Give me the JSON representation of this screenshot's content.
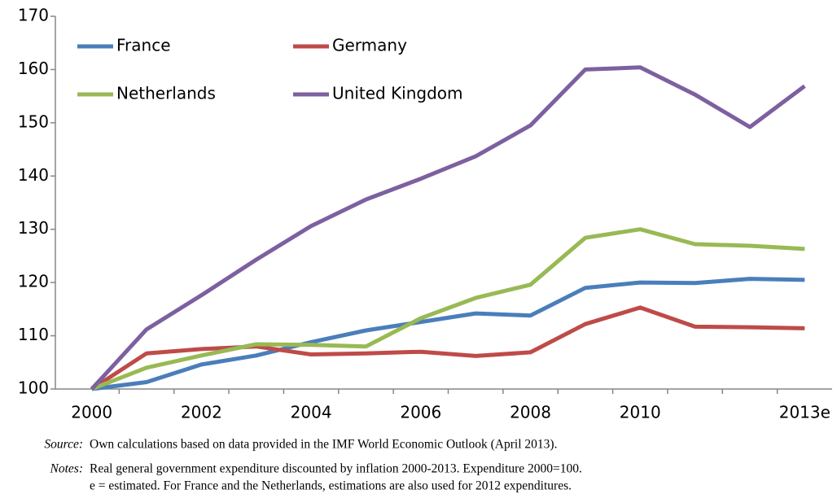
{
  "chart_data": {
    "type": "line",
    "categories": [
      "2000",
      null,
      "2002",
      null,
      "2004",
      null,
      "2006",
      null,
      "2008",
      null,
      "2010",
      null,
      null,
      "2013e"
    ],
    "series": [
      {
        "name": "France",
        "color": "#4a7ebb",
        "values": [
          100,
          101.3,
          104.6,
          106.3,
          108.8,
          111,
          112.6,
          114.2,
          113.8,
          119,
          120,
          119.9,
          120.7,
          120.5
        ]
      },
      {
        "name": "Germany",
        "color": "#be4b48",
        "values": [
          100,
          106.7,
          107.5,
          108,
          106.5,
          106.7,
          107,
          106.2,
          106.9,
          112.2,
          115.3,
          111.7,
          111.6,
          111.4
        ]
      },
      {
        "name": "Netherlands",
        "color": "#98b954",
        "values": [
          100,
          104,
          106.3,
          108.4,
          108.3,
          108,
          113.3,
          117.1,
          119.6,
          128.4,
          130,
          127.2,
          126.9,
          126.3
        ]
      },
      {
        "name": "United Kingdom",
        "color": "#7d60a0",
        "values": [
          100,
          111.2,
          117.6,
          124.3,
          130.6,
          135.6,
          139.5,
          143.7,
          149.5,
          160,
          160.4,
          155.3,
          149.2,
          156.9
        ]
      }
    ],
    "ylim": [
      100,
      170
    ],
    "yticks": [
      100,
      110,
      120,
      130,
      140,
      150,
      160,
      170
    ],
    "grid": false
  },
  "notes": {
    "source_label": "Source:",
    "source": "Own calculations based on data provided in the IMF World Economic Outlook (April 2013).",
    "notes_label": "Notes:",
    "notes": [
      "Real general government expenditure discounted by inflation 2000-2013. Expenditure 2000=100.",
      "e = estimated. For France and the Netherlands, estimations are also used for 2012 expenditures."
    ]
  }
}
